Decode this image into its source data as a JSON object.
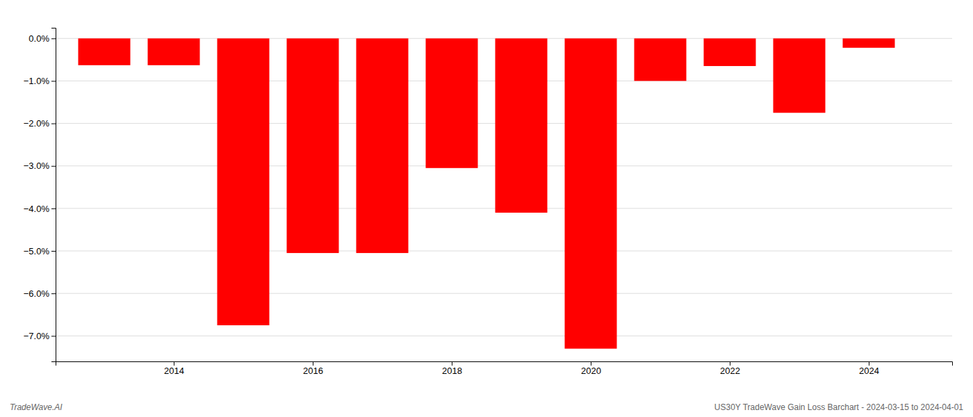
{
  "chart_data": {
    "type": "bar",
    "x": [
      2013,
      2014,
      2015,
      2016,
      2017,
      2018,
      2019,
      2020,
      2021,
      2022,
      2023,
      2024
    ],
    "values": [
      -0.63,
      -0.63,
      -6.75,
      -5.05,
      -5.05,
      -3.05,
      -4.1,
      -7.3,
      -1.0,
      -0.65,
      -1.75,
      -0.22
    ],
    "color": "#ff0000",
    "xlim": [
      2012.3,
      2025.2
    ],
    "xticks": [
      2014,
      2016,
      2018,
      2020,
      2022,
      2024
    ],
    "ylim": [
      -7.6,
      0.25
    ],
    "yticks": [
      {
        "value": 0.0,
        "label": "0.0%"
      },
      {
        "value": -1.0,
        "label": "−1.0%"
      },
      {
        "value": -2.0,
        "label": "−2.0%"
      },
      {
        "value": -3.0,
        "label": "−3.0%"
      },
      {
        "value": -4.0,
        "label": "−4.0%"
      },
      {
        "value": -5.0,
        "label": "−5.0%"
      },
      {
        "value": -6.0,
        "label": "−6.0%"
      },
      {
        "value": -7.0,
        "label": "−7.0%"
      }
    ],
    "grid": true,
    "annotations": [
      "TradeWave.AI",
      "US30Y TradeWave Gain Loss Barchart - 2024-03-15 to 2024-04-01"
    ]
  }
}
